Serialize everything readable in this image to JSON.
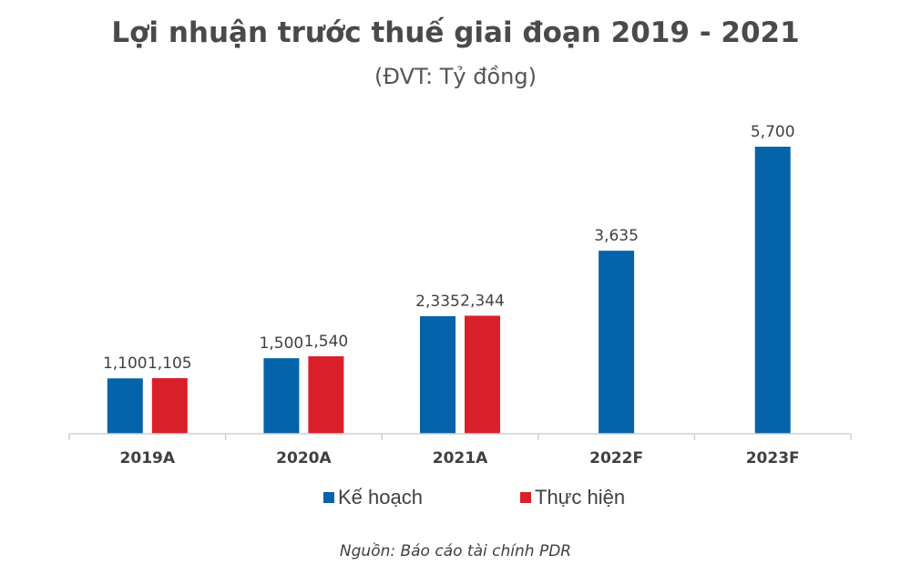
{
  "chart_data": {
    "type": "bar",
    "title": "Lợi nhuận trước thuế giai đoạn 2019 - 2021",
    "subtitle": "(ĐVT: Tỷ đồng)",
    "categories": [
      "2019A",
      "2020A",
      "2021A",
      "2022F",
      "2023F"
    ],
    "series": [
      {
        "name": "Kế hoạch",
        "color": "#0563AA",
        "values": [
          1100,
          1500,
          2335,
          3635,
          5700
        ],
        "labels": [
          "1,100",
          "1,500",
          "2,335",
          "3,635",
          "5,700"
        ]
      },
      {
        "name": "Thực hiện",
        "color": "#D9202A",
        "values": [
          1105,
          1540,
          2344,
          null,
          null
        ],
        "labels": [
          "1,105",
          "1,540",
          "2,344",
          null,
          null
        ]
      }
    ],
    "xlabel": "",
    "ylabel": "",
    "ylim": [
      0,
      5700
    ],
    "grid": false,
    "legend": "bottom",
    "source": "Nguồn: Báo cáo tài chính PDR"
  }
}
